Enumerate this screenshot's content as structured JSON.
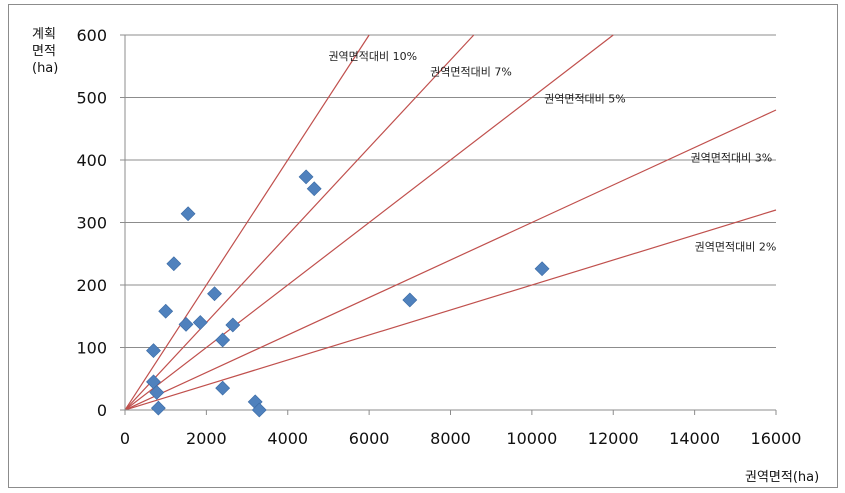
{
  "chart_data": {
    "type": "scatter",
    "title": "",
    "xlabel": "권역면적(ha)",
    "ylabel_lines": [
      "계획",
      "면적",
      "(ha)"
    ],
    "xlim": [
      0,
      16000
    ],
    "ylim": [
      0,
      600
    ],
    "xticks": [
      "0",
      "2000",
      "4000",
      "6000",
      "8000",
      "10000",
      "12000",
      "14000",
      "16000"
    ],
    "yticks": [
      "0",
      "100",
      "200",
      "300",
      "400",
      "500",
      "600"
    ],
    "grid": "horizontal",
    "colors": {
      "points": "#4f81bd",
      "ref_lines": "#c0504d",
      "grid": "#8c8c8c"
    },
    "points": [
      {
        "x": 700,
        "y": 95
      },
      {
        "x": 700,
        "y": 45
      },
      {
        "x": 780,
        "y": 28
      },
      {
        "x": 820,
        "y": 3
      },
      {
        "x": 1000,
        "y": 158
      },
      {
        "x": 1200,
        "y": 234
      },
      {
        "x": 1500,
        "y": 137
      },
      {
        "x": 1550,
        "y": 314
      },
      {
        "x": 1850,
        "y": 140
      },
      {
        "x": 2200,
        "y": 186
      },
      {
        "x": 2400,
        "y": 112
      },
      {
        "x": 2400,
        "y": 35
      },
      {
        "x": 2650,
        "y": 136
      },
      {
        "x": 3200,
        "y": 13
      },
      {
        "x": 3300,
        "y": 0
      },
      {
        "x": 4450,
        "y": 373
      },
      {
        "x": 4650,
        "y": 354
      },
      {
        "x": 7000,
        "y": 176
      },
      {
        "x": 10250,
        "y": 226
      }
    ],
    "reference_lines": [
      {
        "label": "권역면적대비 10%",
        "ratio": 0.1,
        "label_pos": [
          5000,
          560
        ]
      },
      {
        "label": "권역면적대비 7%",
        "ratio": 0.07,
        "label_pos": [
          7500,
          535
        ]
      },
      {
        "label": "권역면적대비 5%",
        "ratio": 0.05,
        "label_pos": [
          10300,
          492
        ]
      },
      {
        "label": "권역면적대비 3%",
        "ratio": 0.03,
        "label_pos": [
          13900,
          398
        ]
      },
      {
        "label": "권역면적대비 2%",
        "ratio": 0.02,
        "label_pos": [
          14000,
          255
        ]
      }
    ]
  }
}
